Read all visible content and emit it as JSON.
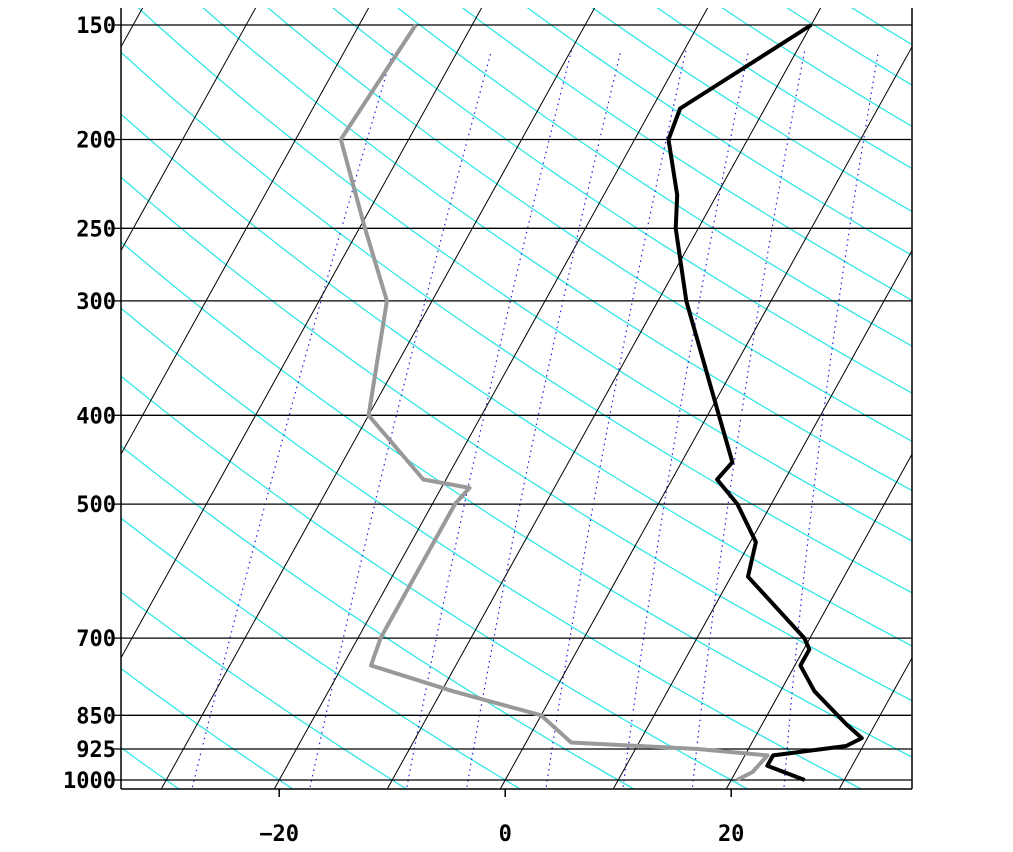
{
  "chart_data": {
    "type": "line",
    "title": "",
    "xlabel": "",
    "ylabel": "",
    "y_scale": "log-pressure",
    "xlim": [
      -34,
      36
    ],
    "ylim": [
      1000,
      150
    ],
    "pressure_levels": [
      150,
      200,
      250,
      300,
      400,
      500,
      700,
      850,
      925,
      1000
    ],
    "pressure_tick_labels": [
      "150",
      "200",
      "250",
      "300",
      "400",
      "500",
      "700",
      "850",
      "925",
      "1000"
    ],
    "temperature_ticks": [
      -20,
      0,
      20
    ],
    "temperature_tick_labels": [
      "−20",
      "0",
      "20"
    ],
    "skew_x_per_decade": 45,
    "grid": true,
    "series": [
      {
        "color": "#000000",
        "points": [
          {
            "p": 1000,
            "t": 26.5
          },
          {
            "p": 965,
            "t": 22.5
          },
          {
            "p": 940,
            "t": 22.5
          },
          {
            "p": 918,
            "t": 28.5
          },
          {
            "p": 900,
            "t": 29.5
          },
          {
            "p": 870,
            "t": 27.5
          },
          {
            "p": 800,
            "t": 23.0
          },
          {
            "p": 750,
            "t": 20.5
          },
          {
            "p": 720,
            "t": 20.5
          },
          {
            "p": 700,
            "t": 19.5
          },
          {
            "p": 600,
            "t": 11.5
          },
          {
            "p": 550,
            "t": 10.5
          },
          {
            "p": 500,
            "t": 7.0
          },
          {
            "p": 470,
            "t": 4.0
          },
          {
            "p": 450,
            "t": 4.5
          },
          {
            "p": 400,
            "t": 1.0
          },
          {
            "p": 300,
            "t": -7.5
          },
          {
            "p": 250,
            "t": -12.0
          },
          {
            "p": 230,
            "t": -13.5
          },
          {
            "p": 200,
            "t": -17.0
          },
          {
            "p": 185,
            "t": -17.5
          },
          {
            "p": 150,
            "t": -10.0
          }
        ]
      },
      {
        "color": "#999999",
        "points": [
          {
            "p": 1000,
            "t": 20.5
          },
          {
            "p": 980,
            "t": 21.5
          },
          {
            "p": 940,
            "t": 22.0
          },
          {
            "p": 925,
            "t": 15.5
          },
          {
            "p": 910,
            "t": 4.0
          },
          {
            "p": 850,
            "t": 0.0
          },
          {
            "p": 800,
            "t": -9.0
          },
          {
            "p": 750,
            "t": -17.5
          },
          {
            "p": 700,
            "t": -18.0
          },
          {
            "p": 500,
            "t": -18.0
          },
          {
            "p": 480,
            "t": -17.5
          },
          {
            "p": 470,
            "t": -22.0
          },
          {
            "p": 400,
            "t": -30.0
          },
          {
            "p": 300,
            "t": -34.0
          },
          {
            "p": 250,
            "t": -39.5
          },
          {
            "p": 200,
            "t": -46.0
          },
          {
            "p": 150,
            "t": -45.0
          }
        ]
      }
    ]
  }
}
